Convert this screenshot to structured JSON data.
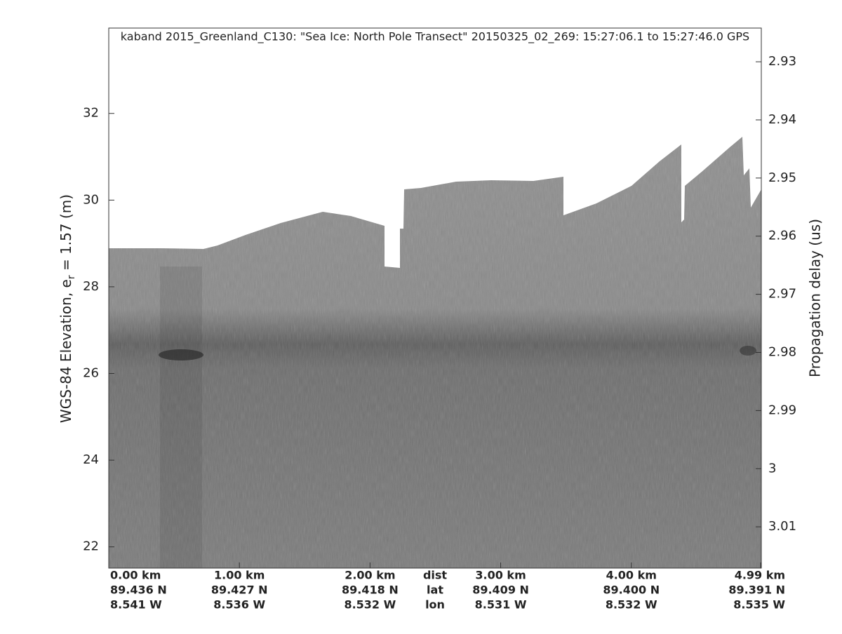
{
  "chart_data": {
    "type": "echogram",
    "title": "kaband 2015_Greenland_C130: \"Sea Ice: North Pole Transect\"  20150325_02_269: 15:27:06.1 to 15:27:46.0 GPS",
    "ylabel": {
      "text": "WGS-84 Elevation, e",
      "subscript": "r",
      "suffix": " = 1.57 (m)"
    },
    "y2label": "Propagation delay (us)",
    "xlim": [
      0,
      4.995
    ],
    "xticks": [
      {
        "value": 0,
        "label": "0.00 km",
        "lat": "89.436 N",
        "lon": "8.541 W"
      },
      {
        "value": 1,
        "label": "1.00 km",
        "lat": "89.427 N",
        "lon": "8.536 W"
      },
      {
        "value": 2,
        "label": "2.00 km",
        "lat": "89.418 N",
        "lon": "8.532 W"
      },
      {
        "value": 3,
        "label": "3.00 km",
        "lat": "89.409 N",
        "lon": "8.531 W"
      },
      {
        "value": 4,
        "label": "4.00 km",
        "lat": "89.400 N",
        "lon": "8.532 W"
      },
      {
        "value": 4.99,
        "label": "4.99 km",
        "lat": "89.391 N",
        "lon": "8.535 W"
      }
    ],
    "row_labels": [
      "dist",
      "lat",
      "lon"
    ],
    "ylim": [
      21.51,
      33.97
    ],
    "yticks": [
      22,
      24,
      26,
      28,
      30,
      32
    ],
    "y2lim": [
      2.9242,
      3.0171
    ],
    "y2ticks": [
      2.93,
      2.94,
      2.95,
      2.96,
      2.97,
      2.98,
      2.99,
      3,
      3.01
    ]
  }
}
